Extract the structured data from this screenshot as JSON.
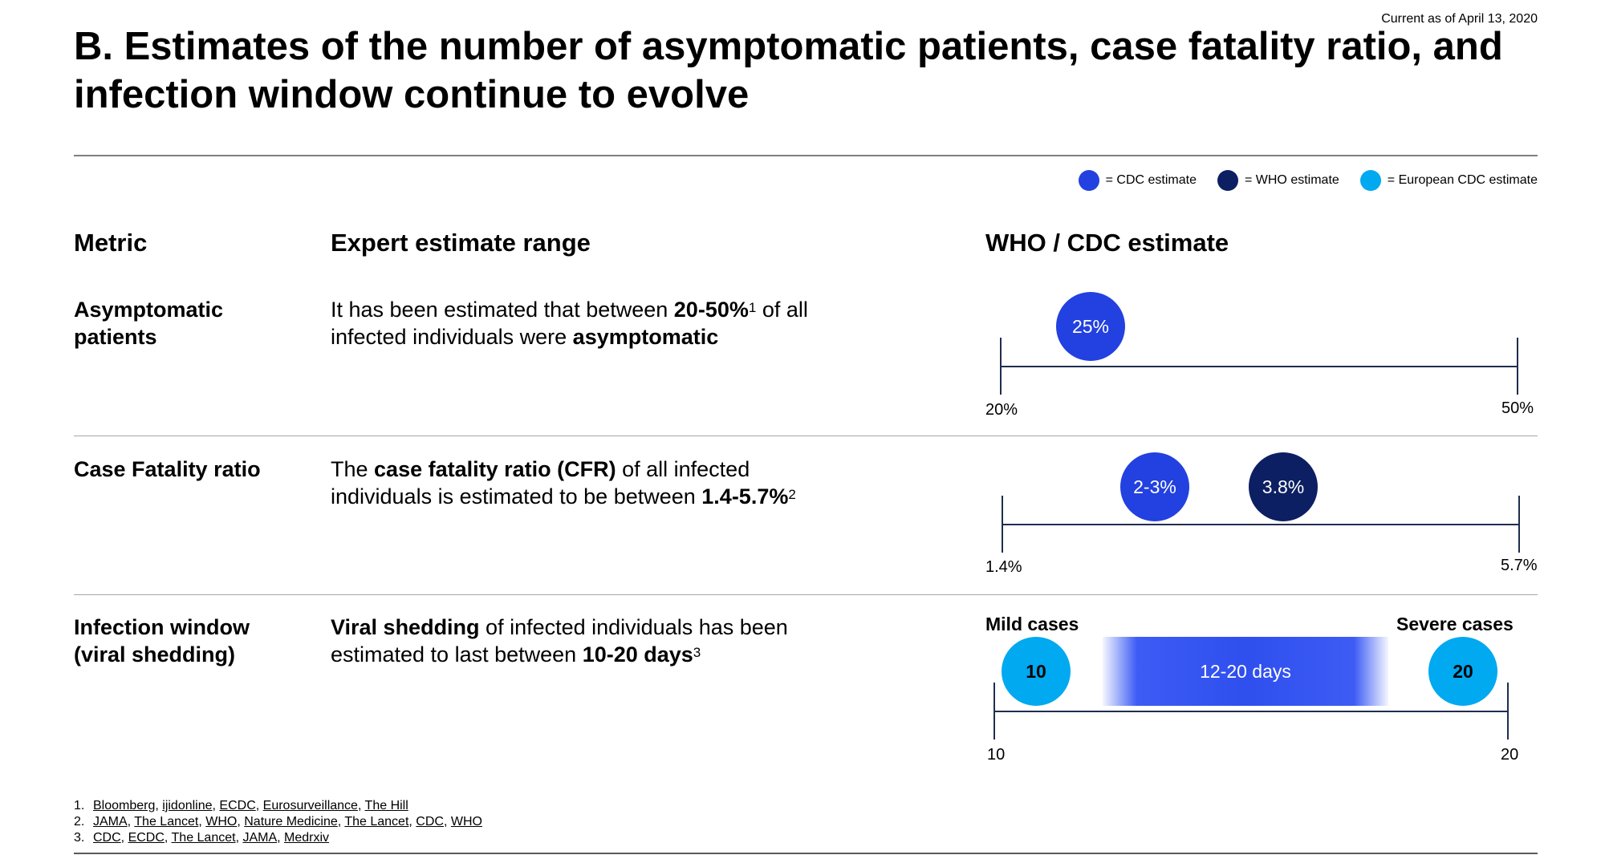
{
  "header": {
    "current_as_of": "Current as of April 13, 2020",
    "title": "B. Estimates of the number of asymptomatic patients, case fatality ratio, and infection window continue to evolve"
  },
  "legend": {
    "items": [
      {
        "label": "= CDC estimate",
        "color": "#2241e0"
      },
      {
        "label": "= WHO estimate",
        "color": "#0d1f63"
      },
      {
        "label": "= European CDC estimate",
        "color": "#00a9f0"
      }
    ]
  },
  "columns": {
    "metric": "Metric",
    "range": "Expert estimate range",
    "estimate": "WHO / CDC estimate"
  },
  "rows": [
    {
      "metric": "Asymptomatic patients",
      "desc_parts": [
        "It has been estimated that between ",
        "20-50%",
        "1",
        " of all infected individuals were ",
        "asymptomatic"
      ],
      "axis_min": "20%",
      "axis_max": "50%",
      "bubbles": [
        {
          "label": "25%",
          "value": 25,
          "source": "CDC"
        }
      ]
    },
    {
      "metric": "Case Fatality ratio",
      "desc_parts": [
        "The ",
        "case fatality ratio (CFR)",
        " of all infected individuals is estimated to be between ",
        "1.4-5.7%",
        "2"
      ],
      "axis_min": "1.4%",
      "axis_max": "5.7%",
      "bubbles": [
        {
          "label": "2-3%",
          "value": 2.5,
          "source": "CDC"
        },
        {
          "label": "3.8%",
          "value": 3.8,
          "source": "WHO"
        }
      ]
    },
    {
      "metric": "Infection window (viral shedding)",
      "desc_parts": [
        "Viral shedding",
        " of infected individuals has been estimated to last between ",
        "10-20 days",
        "3"
      ],
      "axis_min": "10",
      "axis_max": "20",
      "mild_label": "Mild cases",
      "severe_label": "Severe cases",
      "mild_value": "10",
      "severe_value": "20",
      "range_label": "12-20 days",
      "range_start": 12,
      "range_end": 20
    }
  ],
  "footnotes": [
    {
      "num": "1.",
      "sources": [
        "Bloomberg",
        "ijidonline",
        "ECDC",
        "Eurosurveillance",
        "The Hill"
      ]
    },
    {
      "num": "2.",
      "sources": [
        "JAMA",
        "The Lancet",
        "WHO",
        "Nature Medicine",
        "The Lancet",
        "CDC",
        "WHO"
      ]
    },
    {
      "num": "3.",
      "sources": [
        "CDC",
        "ECDC",
        "The Lancet",
        "JAMA",
        "Medrxiv"
      ]
    }
  ]
}
